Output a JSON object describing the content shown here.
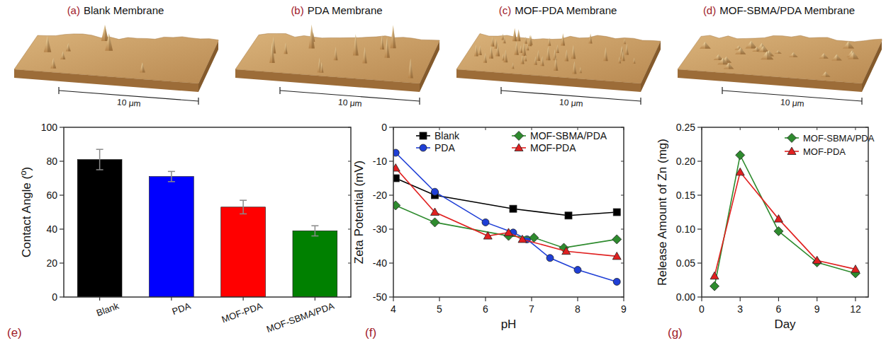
{
  "images": [
    {
      "letter": "(a)",
      "title": "Blank Membrane",
      "scale_label": "10 μm"
    },
    {
      "letter": "(b)",
      "title": "PDA Membrane",
      "scale_label": "10 μm"
    },
    {
      "letter": "(c)",
      "title": "MOF-PDA Membrane",
      "scale_label": "10 μm"
    },
    {
      "letter": "(d)",
      "title": "MOF-SBMA/PDA Membrane",
      "scale_label": "10 μm"
    }
  ],
  "chart_data": [
    {
      "type": "bar",
      "panel": "(e)",
      "y_label": "Contact Angle (º)",
      "categories": [
        "Blank",
        "PDA",
        "MOF-PDA",
        "MOF-SBMA/PDA"
      ],
      "values": [
        81,
        71,
        53,
        39
      ],
      "errors": [
        6,
        3,
        4,
        3
      ],
      "colors": [
        "#000000",
        "#0000ff",
        "#ff0000",
        "#008000"
      ],
      "ylim": [
        0,
        100
      ],
      "yticks": [
        0,
        20,
        40,
        60,
        80,
        100
      ]
    },
    {
      "type": "line",
      "panel": "(f)",
      "x_label": "pH",
      "y_label": "Zeta Potential (mV)",
      "xlim": [
        4,
        9
      ],
      "xticks": [
        4,
        5,
        6,
        7,
        8,
        9
      ],
      "ylim": [
        -50,
        0
      ],
      "yticks": [
        -50,
        -40,
        -30,
        -20,
        -10,
        0
      ],
      "legend": "top",
      "series": [
        {
          "name": "Blank",
          "color": "#000000",
          "marker": "square",
          "x": [
            4.05,
            4.9,
            6.6,
            7.8,
            8.85
          ],
          "values": [
            -15,
            -20,
            -24,
            -26,
            -25
          ]
        },
        {
          "name": "PDA",
          "color": "#1f3fd6",
          "marker": "circle",
          "x": [
            4.05,
            4.9,
            6.0,
            6.6,
            6.9,
            7.4,
            8.0,
            8.85
          ],
          "values": [
            -7.5,
            -19,
            -28,
            -31,
            -33,
            -38.5,
            -42,
            -45.5
          ]
        },
        {
          "name": "MOF-SBMA/PDA",
          "color": "#2e8b2e",
          "marker": "diamond",
          "x": [
            4.05,
            4.9,
            6.5,
            7.05,
            7.7,
            8.85
          ],
          "values": [
            -23,
            -28,
            -32,
            -32.5,
            -35.5,
            -33
          ]
        },
        {
          "name": "MOF-PDA",
          "color": "#e02020",
          "marker": "triangle",
          "x": [
            4.05,
            4.9,
            6.05,
            6.5,
            6.8,
            7.75,
            8.85
          ],
          "values": [
            -12,
            -25,
            -32,
            -31,
            -33,
            -36.5,
            -38
          ]
        }
      ]
    },
    {
      "type": "line",
      "panel": "(g)",
      "x_label": "Day",
      "y_label": "Release Amount of Zn (mg)",
      "xlim": [
        0,
        13
      ],
      "xticks": [
        0,
        3,
        6,
        9,
        12
      ],
      "ylim": [
        0,
        0.25
      ],
      "yticks": [
        {
          "value": 0,
          "label": "0.00"
        },
        {
          "value": 0.05,
          "label": "0.05"
        },
        {
          "value": 0.1,
          "label": "0.10"
        },
        {
          "value": 0.15,
          "label": "0.15"
        },
        {
          "value": 0.2,
          "label": "0.20"
        },
        {
          "value": 0.25,
          "label": "0.25"
        }
      ],
      "legend": "top-right",
      "series": [
        {
          "name": "MOF-SBMA/PDA",
          "color": "#2e8b2e",
          "marker": "diamond",
          "x": [
            1,
            3,
            6,
            9,
            12
          ],
          "values": [
            0.016,
            0.209,
            0.097,
            0.051,
            0.035
          ]
        },
        {
          "name": "MOF-PDA",
          "color": "#e02020",
          "marker": "triangle",
          "x": [
            1,
            3,
            6,
            9,
            12
          ],
          "values": [
            0.031,
            0.184,
            0.115,
            0.054,
            0.041
          ]
        }
      ]
    }
  ]
}
